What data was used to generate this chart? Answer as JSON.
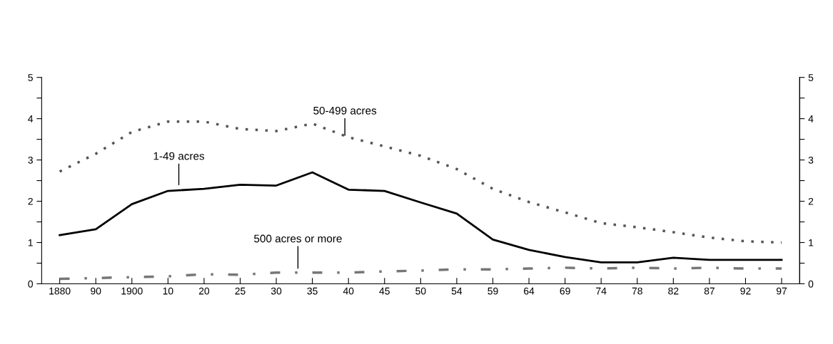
{
  "chart_data": {
    "type": "line",
    "categories": [
      "1880",
      "90",
      "1900",
      "10",
      "20",
      "25",
      "30",
      "35",
      "40",
      "45",
      "50",
      "54",
      "59",
      "64",
      "69",
      "74",
      "78",
      "82",
      "87",
      "92",
      "97"
    ],
    "series": [
      {
        "name": "1-49 acres",
        "color": "#000000",
        "line_style": "solid",
        "values": [
          1.18,
          1.32,
          1.93,
          2.25,
          2.3,
          2.4,
          2.38,
          2.7,
          2.28,
          2.25,
          1.97,
          1.7,
          1.07,
          0.82,
          0.65,
          0.52,
          0.52,
          0.63,
          0.58,
          0.58,
          0.58
        ]
      },
      {
        "name": "50-499 acres",
        "color": "#555555",
        "line_style": "dotted",
        "values": [
          2.72,
          3.15,
          3.68,
          3.93,
          3.93,
          3.75,
          3.7,
          3.88,
          3.55,
          3.33,
          3.1,
          2.78,
          2.3,
          1.98,
          1.73,
          1.47,
          1.37,
          1.25,
          1.12,
          1.03,
          1.0
        ]
      },
      {
        "name": "500 acres or more",
        "color": "#777777",
        "line_style": "dashdot",
        "values": [
          0.12,
          0.14,
          0.16,
          0.18,
          0.23,
          0.22,
          0.27,
          0.27,
          0.27,
          0.3,
          0.32,
          0.35,
          0.35,
          0.37,
          0.39,
          0.37,
          0.39,
          0.37,
          0.39,
          0.37,
          0.37
        ]
      }
    ],
    "ylim": [
      0,
      5
    ],
    "yticks": [
      0,
      {
        "value": 0.5,
        "label": null
      },
      1,
      {
        "value": 1.5,
        "label": null
      },
      2,
      {
        "value": 2.5,
        "label": null
      },
      3,
      {
        "value": 3.5,
        "label": null
      },
      4,
      {
        "value": 4.5,
        "label": null
      },
      5
    ],
    "y2lim": [
      0,
      5
    ],
    "y2ticks": [
      0,
      {
        "value": 0.5,
        "label": null
      },
      1,
      {
        "value": 1.5,
        "label": null
      },
      2,
      {
        "value": 2.5,
        "label": null
      },
      3,
      {
        "value": 3.5,
        "label": null
      },
      4,
      {
        "value": 4.5,
        "label": null
      },
      5
    ],
    "grid": false,
    "legend": false
  }
}
